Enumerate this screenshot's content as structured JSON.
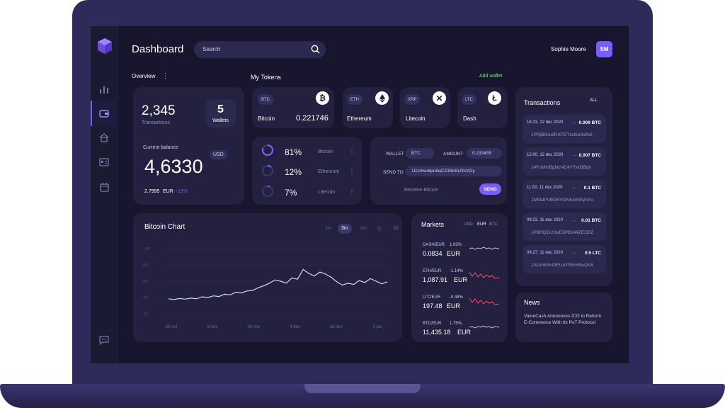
{
  "header": {
    "title": "Dashboard",
    "search_placeholder": "Search",
    "user_name": "Sophie Moore",
    "user_initials": "SM"
  },
  "overview": {
    "label": "Overview",
    "transactions_value": "2,345",
    "transactions_label": "Transactions",
    "wallets_value": "5",
    "wallets_label": "Wallets",
    "balance_label": "Current balance",
    "currency": "USD",
    "balance_value": "4,6330",
    "eur_value": "2.7995",
    "eur_label": "EUR",
    "eur_change": "+12%"
  },
  "tokens": {
    "title": "My Tokens",
    "add_wallet": "Add wallet",
    "items": [
      {
        "code": "BTC",
        "name": "Bitcoin",
        "amount": "0.221746"
      },
      {
        "code": "ETH",
        "name": "Ethereum",
        "amount": ""
      },
      {
        "code": "XRP",
        "name": "Litecoin",
        "amount": ""
      },
      {
        "code": "LTC",
        "name": "Dash",
        "amount": ""
      }
    ]
  },
  "allocation": [
    {
      "pct": "81%",
      "name": "Bitcoin",
      "value": 81
    },
    {
      "pct": "12%",
      "name": "Ethereum",
      "value": 12
    },
    {
      "pct": "7%",
      "name": "Litecoin",
      "value": 7
    }
  ],
  "send": {
    "wallet_label": "WALLET",
    "wallet_value": "BTC",
    "amount_label": "AMOUNT",
    "amount_value": "0.233455",
    "send_to_label": "SEND TO",
    "address": "1Cs4wu6pu5qCZ35bSLNVzGy",
    "receive_label": "Receive Bitcoin",
    "send_button": "SEND"
  },
  "chart": {
    "title": "Bitcoin Chart",
    "ranges": [
      "1m",
      "3m",
      "6m",
      "1y",
      "All"
    ],
    "active_range": "3m"
  },
  "chart_data": {
    "type": "line",
    "title": "Bitcoin Chart",
    "yticks": [
      "10K",
      "8K",
      "6K",
      "4K",
      "2K"
    ],
    "xticks": [
      "23 oct",
      "6 nov",
      "20 nov",
      "4 dec",
      "18 dec",
      "1 jan"
    ],
    "ylim": [
      0,
      10000
    ],
    "values": [
      2300,
      2200,
      2350,
      2250,
      2400,
      2300,
      2600,
      2500,
      2750,
      2650,
      3000,
      2900,
      3300,
      3200,
      3500,
      3600,
      4000,
      4300,
      4700,
      5200,
      5000,
      4700,
      5500,
      5300,
      6800,
      6200,
      5800,
      6400,
      6100,
      5600,
      4900,
      4400,
      4700,
      4500,
      5100,
      4800,
      5400,
      5000,
      4600,
      4900
    ]
  },
  "markets": {
    "title": "Markets",
    "currencies": [
      "USD",
      "EUR",
      "BTC"
    ],
    "active_currency": "EUR",
    "items": [
      {
        "pair": "DASH/EUR",
        "change": "1.93%",
        "price": "0.0834",
        "unit": "EUR",
        "up": true
      },
      {
        "pair": "ETH/EUR",
        "change": "-1.14%",
        "price": "1,087.91",
        "unit": "EUR",
        "up": false
      },
      {
        "pair": "LTC/EUR",
        "change": "-0.48%",
        "price": "197.48",
        "unit": "EUR",
        "up": false
      },
      {
        "pair": "BTC/EUR",
        "change": "1.75%",
        "price": "11,435.18",
        "unit": "EUR",
        "up": true
      }
    ]
  },
  "transactions": {
    "title": "Transactions",
    "filter": "ALL",
    "items": [
      {
        "date": "16:23, 12 dec 2020",
        "amount": "0.009 BTC",
        "hash": "1PRjB5hu9RXPZTzxtko9stfs6",
        "in": true
      },
      {
        "date": "15:00, 12 dec 2020",
        "amount": "0.007 BTC",
        "hash": "14FuMfoBgNcNC4YTskDBqh",
        "in": true
      },
      {
        "date": "11:00, 11 dec 2020",
        "amount": "0.1 BTC",
        "hash": "1M5tdPVBG6YGfvKkrNEyhPu",
        "in": false
      },
      {
        "date": "09:23, 11 dec 2020",
        "amount": "0.01 BTC",
        "hash": "1P9RQEr2XeE3PEb44ZE35fZ",
        "in": true
      },
      {
        "date": "09:27, 11 dec 2020",
        "amount": "0.5 LTC",
        "hash": "1AGm6Jc43FUaYRKmBwj2c8",
        "in": false
      }
    ]
  },
  "news": {
    "title": "News",
    "text": "ValueCash Announces ICO to Reform E-Commerce With Its PoT Protocol"
  },
  "colors": {
    "accent": "#7b5cff",
    "up": "#6a5cff",
    "down": "#ff4b6e",
    "positive": "#7ee07a"
  }
}
